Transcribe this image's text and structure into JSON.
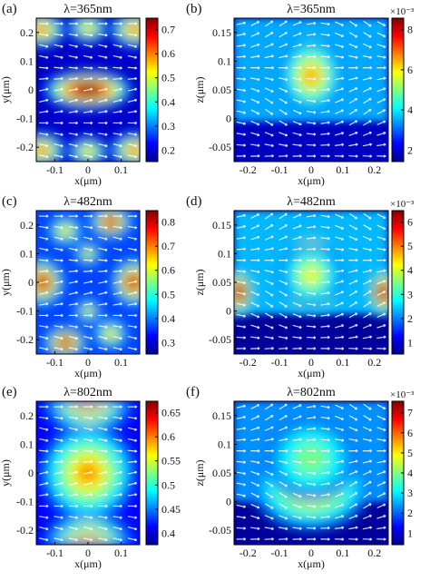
{
  "figure": {
    "panels": [
      {
        "label": "(a)",
        "title": "λ=365nm",
        "xlabel": "x(μm)",
        "ylabel": "y(μm)",
        "exponent": "",
        "xticks": [
          "-0.1",
          "0",
          "0.1"
        ],
        "yticks": [
          "0.2",
          "0.1",
          "0",
          "-0.1",
          "-0.2"
        ],
        "cticks": [
          "0.7",
          "0.6",
          "0.5",
          "0.4",
          "0.3",
          "0.2"
        ]
      },
      {
        "label": "(b)",
        "title": "λ=365nm",
        "xlabel": "x(μm)",
        "ylabel": "z(μm)",
        "exponent": "×10⁻³",
        "xticks": [
          "-0.2",
          "-0.1",
          "0",
          "0.1",
          "0.2"
        ],
        "yticks": [
          "0.15",
          "0.1",
          "0.05",
          "0",
          "-0.05"
        ],
        "cticks": [
          "8",
          "6",
          "4",
          "2"
        ]
      },
      {
        "label": "(c)",
        "title": "λ=482nm",
        "xlabel": "x(μm)",
        "ylabel": "y(μm)",
        "exponent": "",
        "xticks": [
          "-0.1",
          "0",
          "0.1"
        ],
        "yticks": [
          "0.2",
          "0.1",
          "0",
          "-0.1",
          "-0.2"
        ],
        "cticks": [
          "0.8",
          "0.7",
          "0.6",
          "0.5",
          "0.4",
          "0.3"
        ]
      },
      {
        "label": "(d)",
        "title": "λ=482nm",
        "xlabel": "x(μm)",
        "ylabel": "z(μm)",
        "exponent": "×10⁻³",
        "xticks": [
          "-0.2",
          "-0.1",
          "0",
          "0.1",
          "0.2"
        ],
        "yticks": [
          "0.15",
          "0.1",
          "0.05",
          "0",
          "-0.05"
        ],
        "cticks": [
          "6",
          "5",
          "4",
          "3",
          "2",
          "1"
        ]
      },
      {
        "label": "(e)",
        "title": "λ=802nm",
        "xlabel": "x(μm)",
        "ylabel": "y(μm)",
        "exponent": "",
        "xticks": [
          "-0.1",
          "0",
          "0.1"
        ],
        "yticks": [
          "0.2",
          "0.1",
          "0",
          "-0.1",
          "-0.2"
        ],
        "cticks": [
          "0.65",
          "0.6",
          "0.55",
          "0.5",
          "0.45",
          "0.4"
        ]
      },
      {
        "label": "(f)",
        "title": "λ=802nm",
        "xlabel": "x(μm)",
        "ylabel": "z(μm)",
        "exponent": "×10⁻³",
        "xticks": [
          "-0.2",
          "-0.1",
          "0",
          "0.1",
          "0.2"
        ],
        "yticks": [
          "0.15",
          "0.1",
          "0.05",
          "0",
          "-0.05"
        ],
        "cticks": [
          "7",
          "6",
          "5",
          "4",
          "3",
          "2",
          "1"
        ]
      }
    ],
    "colormap": [
      "#00008f",
      "#0000ff",
      "#0080ff",
      "#00ffff",
      "#80ff80",
      "#ffff00",
      "#ff8000",
      "#ff0000",
      "#800000"
    ]
  },
  "chart_data": [
    {
      "type": "heatmap",
      "title": "λ=365nm",
      "xlabel": "x(μm)",
      "ylabel": "y(μm)",
      "xlim": [
        -0.15,
        0.15
      ],
      "ylim": [
        -0.25,
        0.25
      ],
      "clim": [
        0.15,
        0.78
      ]
    },
    {
      "type": "heatmap",
      "title": "λ=365nm",
      "xlabel": "x(μm)",
      "ylabel": "z(μm)",
      "xlim": [
        -0.27,
        0.27
      ],
      "ylim": [
        -0.08,
        0.18
      ],
      "clim": [
        0.001,
        0.009
      ],
      "colorbar_exponent": "×10⁻³"
    },
    {
      "type": "heatmap",
      "title": "λ=482nm",
      "xlabel": "x(μm)",
      "ylabel": "y(μm)",
      "xlim": [
        -0.15,
        0.15
      ],
      "ylim": [
        -0.25,
        0.25
      ],
      "clim": [
        0.25,
        0.88
      ]
    },
    {
      "type": "heatmap",
      "title": "λ=482nm",
      "xlabel": "x(μm)",
      "ylabel": "z(μm)",
      "xlim": [
        -0.27,
        0.27
      ],
      "ylim": [
        -0.08,
        0.18
      ],
      "clim": [
        0.0005,
        0.0065
      ],
      "colorbar_exponent": "×10⁻³"
    },
    {
      "type": "heatmap",
      "title": "λ=802nm",
      "xlabel": "x(μm)",
      "ylabel": "y(μm)",
      "xlim": [
        -0.15,
        0.15
      ],
      "ylim": [
        -0.25,
        0.25
      ],
      "clim": [
        0.37,
        0.66
      ]
    },
    {
      "type": "heatmap",
      "title": "λ=802nm",
      "xlabel": "x(μm)",
      "ylabel": "z(μm)",
      "xlim": [
        -0.27,
        0.27
      ],
      "ylim": [
        -0.08,
        0.18
      ],
      "clim": [
        0.0005,
        0.0075
      ],
      "colorbar_exponent": "×10⁻³"
    }
  ]
}
